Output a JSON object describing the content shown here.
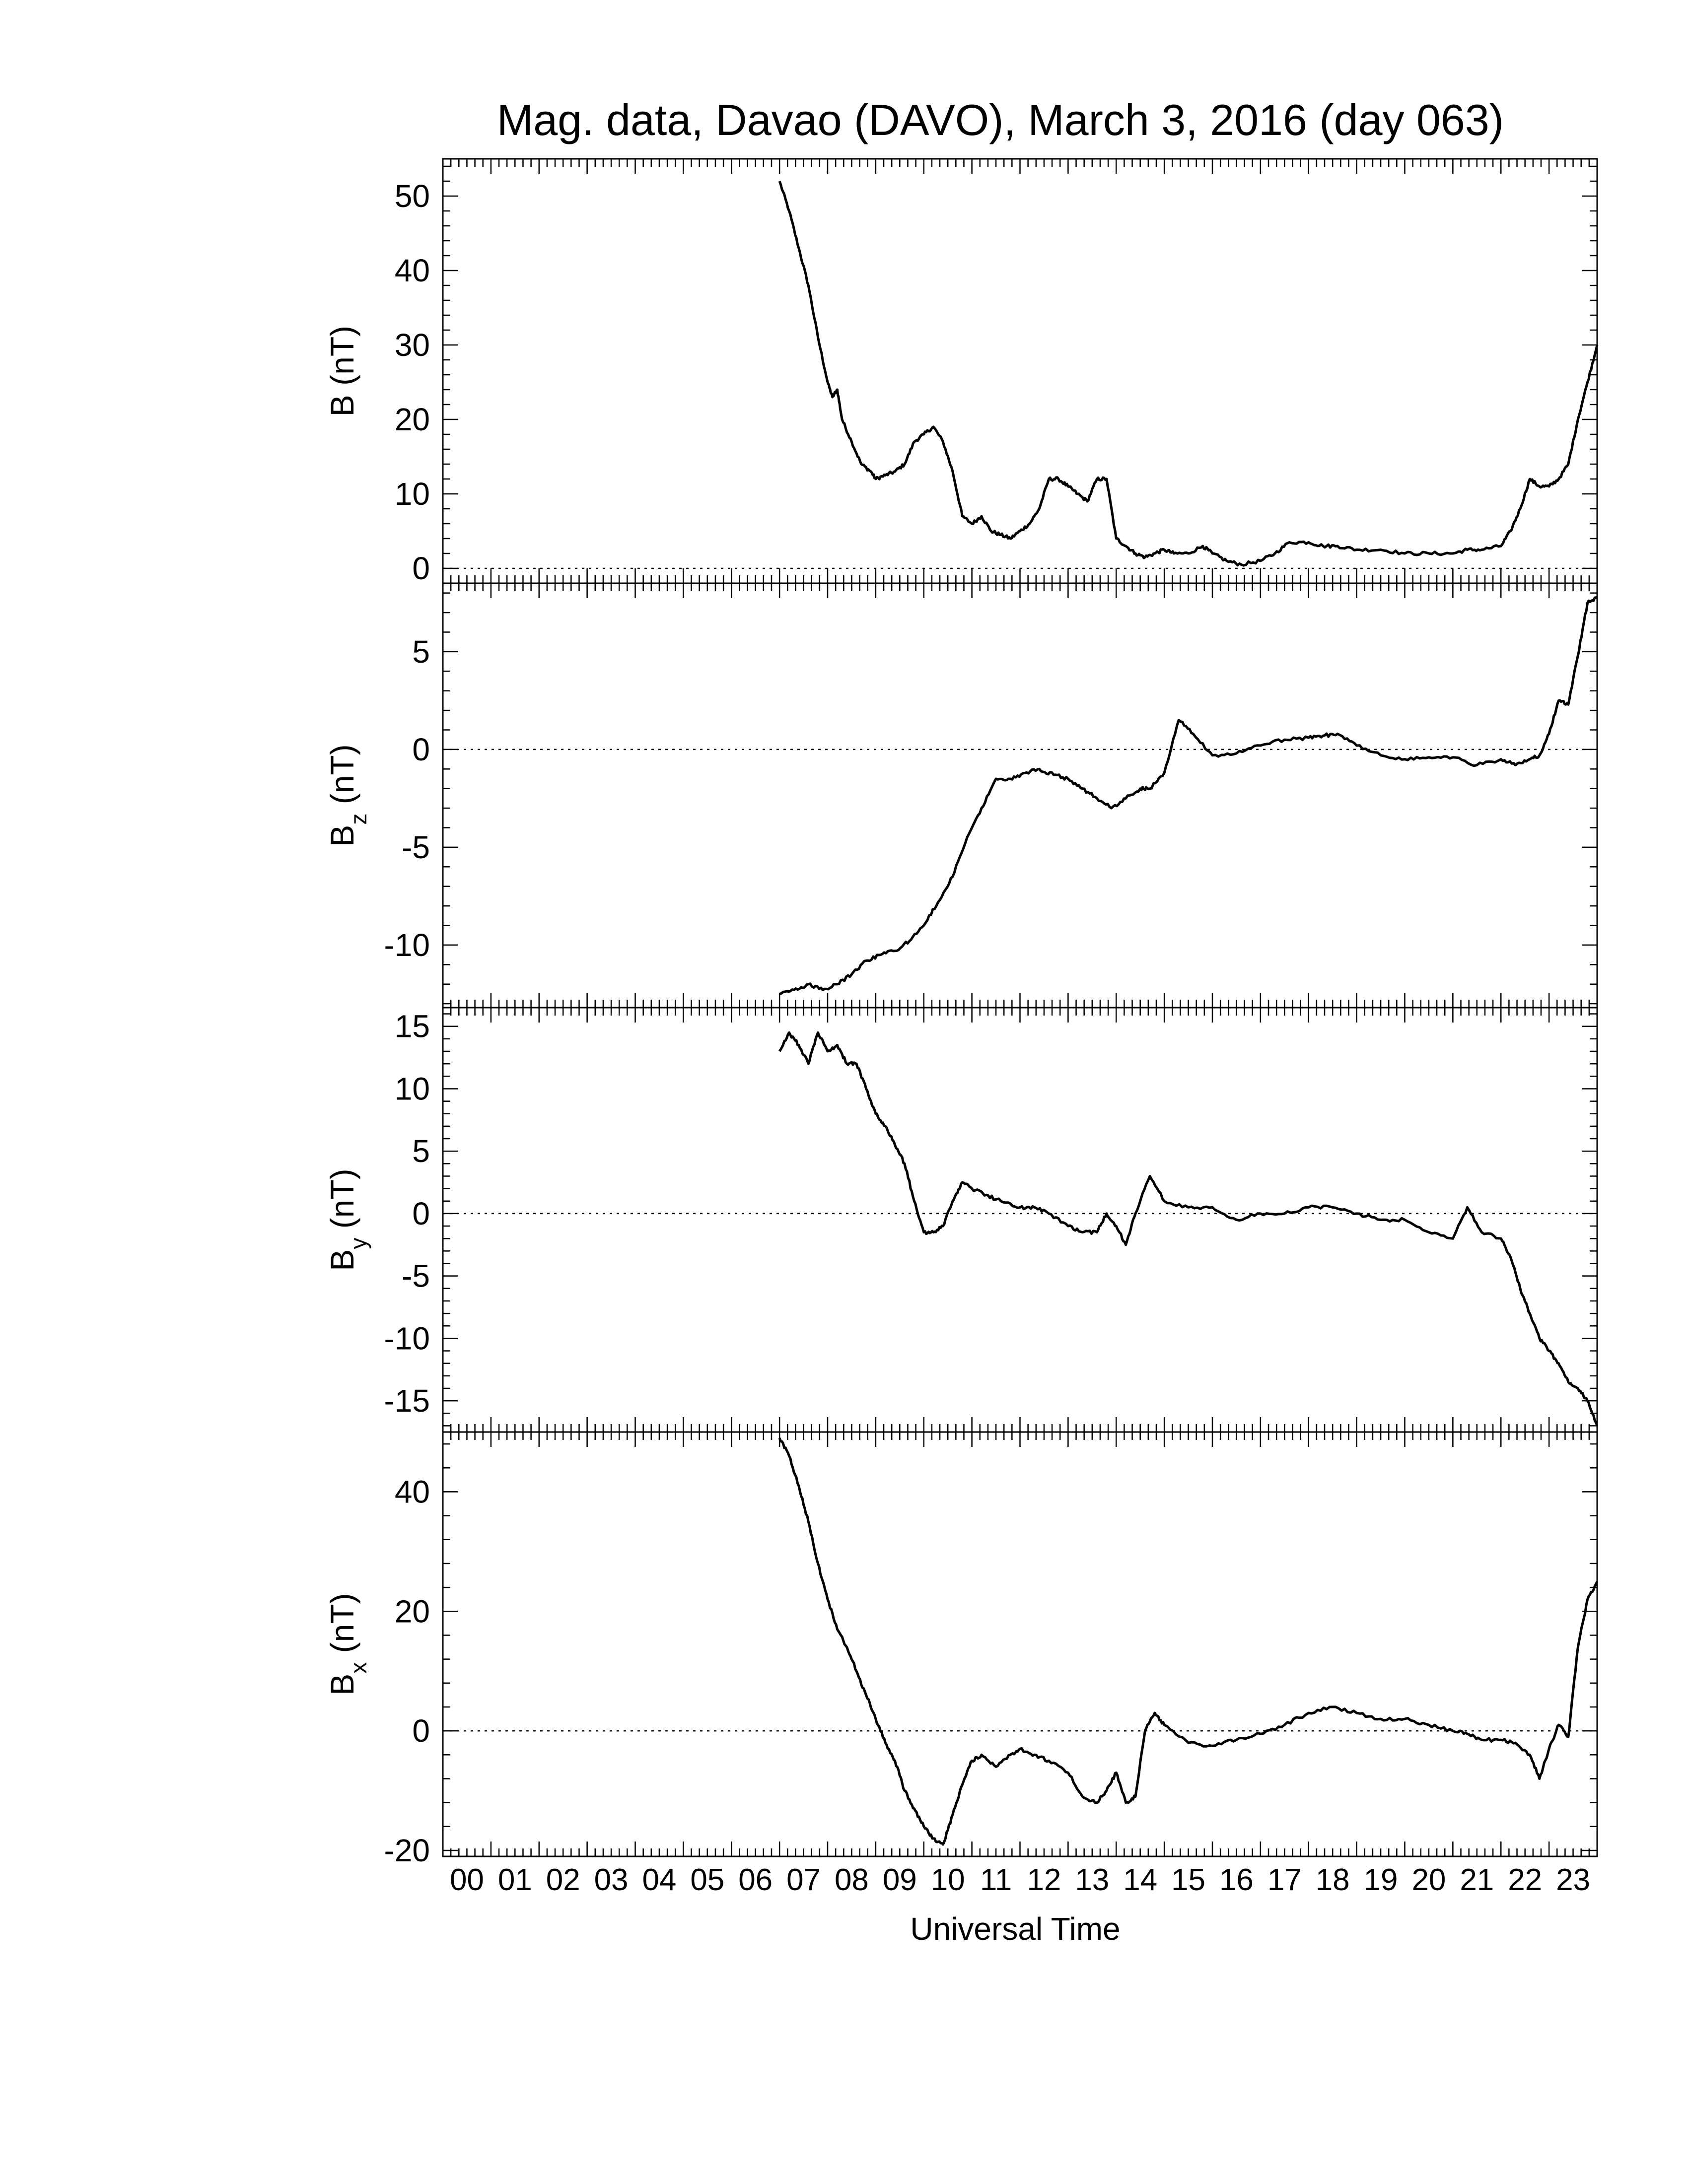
{
  "title": "Mag. data, Davao (DAVO), March 3, 2016 (day 063)",
  "x_axis": {
    "label": "Universal Time",
    "range_hours": [
      0,
      24
    ],
    "tick_labels": [
      "00",
      "01",
      "02",
      "03",
      "04",
      "05",
      "06",
      "07",
      "08",
      "09",
      "10",
      "11",
      "12",
      "13",
      "14",
      "15",
      "16",
      "17",
      "18",
      "19",
      "20",
      "21",
      "22",
      "23"
    ]
  },
  "colors": {
    "line": "#000000",
    "axes": "#000000",
    "background": "#ffffff"
  },
  "chart_data": [
    {
      "type": "line",
      "panel": "B",
      "ylabel": {
        "main": "B",
        "sub": "",
        "unit": " (nT)"
      },
      "ylim": [
        -2,
        55
      ],
      "yticks": [
        0,
        10,
        20,
        30,
        40,
        50
      ],
      "zero_line": "dotted",
      "series": [
        {
          "x": [
            7.0,
            7.2,
            7.4,
            7.6,
            7.8,
            8.0,
            8.1,
            8.2,
            8.3,
            8.5,
            8.7,
            8.9,
            9.0,
            9.2,
            9.4,
            9.6,
            9.8,
            10.0,
            10.2,
            10.4,
            10.6,
            10.8,
            11.0,
            11.2,
            11.4,
            11.6,
            11.8,
            12.0,
            12.2,
            12.4,
            12.6,
            12.8,
            13.0,
            13.2,
            13.4,
            13.6,
            13.8,
            14.0,
            14.2,
            14.4,
            14.6,
            14.8,
            15.0,
            15.2,
            15.5,
            15.8,
            16.0,
            16.3,
            16.6,
            17.0,
            17.3,
            17.6,
            18.0,
            18.3,
            18.6,
            19.0,
            19.5,
            20.0,
            20.5,
            21.0,
            21.3,
            21.6,
            22.0,
            22.2,
            22.4,
            22.6,
            22.8,
            23.0,
            23.2,
            23.4,
            23.6,
            23.8,
            24.0
          ],
          "y": [
            52,
            48,
            43,
            38,
            31,
            25,
            23,
            24,
            20,
            17,
            14,
            13,
            12,
            12.5,
            13,
            14,
            17,
            18,
            19,
            17,
            13,
            7,
            6,
            7,
            5,
            4.5,
            4,
            5,
            6,
            8,
            12,
            12,
            11,
            10,
            9,
            12,
            12,
            4,
            3,
            2,
            1.5,
            2,
            2.5,
            2,
            2,
            3,
            2,
            1,
            0.5,
            1,
            2,
            3.5,
            3.5,
            3,
            3,
            2.5,
            2.5,
            2,
            2,
            2,
            2.5,
            2.5,
            3,
            5,
            8,
            12,
            11,
            11,
            12,
            14,
            20,
            25,
            30
          ]
        }
      ]
    },
    {
      "type": "line",
      "panel": "Bz",
      "ylabel": {
        "main": "B",
        "sub": "z",
        "unit": " (nT)"
      },
      "ylim": [
        -13.2,
        8.5
      ],
      "yticks": [
        -10,
        -5,
        0,
        5
      ],
      "zero_line": "dotted",
      "series": [
        {
          "x": [
            7.0,
            7.3,
            7.6,
            7.9,
            8.2,
            8.5,
            8.8,
            9.1,
            9.4,
            9.7,
            10.0,
            10.3,
            10.6,
            10.9,
            11.2,
            11.5,
            11.8,
            12.1,
            12.4,
            12.7,
            13.0,
            13.3,
            13.6,
            13.9,
            14.2,
            14.5,
            14.7,
            15.0,
            15.3,
            15.6,
            16.0,
            16.5,
            17.0,
            17.5,
            18.0,
            18.3,
            18.6,
            19.0,
            19.5,
            20.0,
            20.5,
            21.0,
            21.5,
            22.0,
            22.3,
            22.6,
            22.8,
            23.0,
            23.2,
            23.4,
            23.6,
            23.8,
            24.0
          ],
          "y": [
            -12.5,
            -12.3,
            -12.0,
            -12.3,
            -12.0,
            -11.5,
            -10.8,
            -10.5,
            -10.3,
            -9.8,
            -9.0,
            -7.8,
            -6.5,
            -4.5,
            -3,
            -1.5,
            -1.5,
            -1.2,
            -1.0,
            -1.3,
            -1.5,
            -2.0,
            -2.5,
            -3.0,
            -2.5,
            -2.0,
            -2.0,
            -1.2,
            1.5,
            0.8,
            -0.3,
            -0.2,
            0.2,
            0.5,
            0.6,
            0.7,
            0.8,
            0.2,
            -0.3,
            -0.5,
            -0.4,
            -0.4,
            -0.8,
            -0.5,
            -0.8,
            -0.5,
            -0.3,
            0.8,
            2.5,
            2.3,
            4.8,
            7.5,
            7.8
          ]
        }
      ]
    },
    {
      "type": "line",
      "panel": "By",
      "ylabel": {
        "main": "B",
        "sub": "y",
        "unit": " (nT)"
      },
      "ylim": [
        -17.5,
        16.5
      ],
      "yticks": [
        -15,
        -10,
        -5,
        0,
        5,
        10,
        15
      ],
      "zero_line": "dotted",
      "series": [
        {
          "x": [
            7.0,
            7.2,
            7.4,
            7.6,
            7.8,
            8.0,
            8.2,
            8.4,
            8.6,
            8.8,
            9.0,
            9.2,
            9.4,
            9.6,
            9.8,
            10.0,
            10.2,
            10.4,
            10.6,
            10.8,
            11.0,
            11.3,
            11.6,
            12.0,
            12.3,
            12.6,
            13.0,
            13.3,
            13.6,
            13.8,
            14.0,
            14.2,
            14.4,
            14.7,
            15.0,
            15.5,
            16.0,
            16.5,
            17.0,
            17.5,
            18.0,
            18.5,
            19.0,
            19.5,
            20.0,
            20.5,
            21.0,
            21.3,
            21.6,
            22.0,
            22.2,
            22.4,
            22.6,
            22.8,
            23.0,
            23.2,
            23.4,
            23.6,
            23.8,
            24.0
          ],
          "y": [
            13,
            14.5,
            13.5,
            12,
            14.5,
            13,
            13.5,
            12,
            12,
            10,
            8,
            7,
            5.5,
            4,
            1,
            -1.5,
            -1.5,
            -1,
            1,
            2.5,
            2,
            1.5,
            1,
            0.5,
            0.5,
            0,
            -1,
            -1.5,
            -1.5,
            0,
            -1,
            -2.5,
            0,
            3,
            1,
            0.5,
            0.5,
            -0.5,
            0,
            0,
            0.5,
            0.5,
            0,
            -0.5,
            -0.5,
            -1.5,
            -2,
            0.5,
            -1.5,
            -2,
            -3.5,
            -6,
            -8,
            -10,
            -11,
            -12,
            -13.5,
            -14,
            -15,
            -17
          ]
        }
      ]
    },
    {
      "type": "line",
      "panel": "Bx",
      "ylabel": {
        "main": "B",
        "sub": "x",
        "unit": " (nT)"
      },
      "ylim": [
        -21,
        50
      ],
      "yticks": [
        -20,
        0,
        20,
        40
      ],
      "zero_line": "dotted",
      "series": [
        {
          "x": [
            7.0,
            7.2,
            7.4,
            7.6,
            7.8,
            8.0,
            8.2,
            8.4,
            8.6,
            8.8,
            9.0,
            9.2,
            9.4,
            9.6,
            9.8,
            10.0,
            10.2,
            10.4,
            10.6,
            10.8,
            11.0,
            11.2,
            11.5,
            11.8,
            12.0,
            12.3,
            12.6,
            13.0,
            13.3,
            13.6,
            13.8,
            14.0,
            14.2,
            14.4,
            14.6,
            14.8,
            15.0,
            15.5,
            16.0,
            16.5,
            17.0,
            17.5,
            18.0,
            18.5,
            19.0,
            19.5,
            20.0,
            20.5,
            21.0,
            21.3,
            21.6,
            22.0,
            22.3,
            22.6,
            22.8,
            23.0,
            23.2,
            23.4,
            23.6,
            23.8,
            24.0
          ],
          "y": [
            49,
            46,
            41,
            35,
            28,
            22,
            17,
            14,
            10,
            6,
            2,
            -2,
            -5,
            -10,
            -13,
            -16,
            -18,
            -19,
            -14,
            -9,
            -5,
            -4,
            -6,
            -4,
            -3,
            -4,
            -5,
            -7,
            -11,
            -12,
            -10,
            -7,
            -12,
            -11,
            0,
            3,
            1,
            -2,
            -2.5,
            -1.5,
            -0.5,
            1,
            3,
            4,
            3,
            2,
            2,
            1,
            0,
            -0.5,
            -1.5,
            -1.5,
            -2,
            -4,
            -8,
            -3,
            1,
            -1,
            14,
            22,
            25
          ]
        }
      ]
    }
  ]
}
